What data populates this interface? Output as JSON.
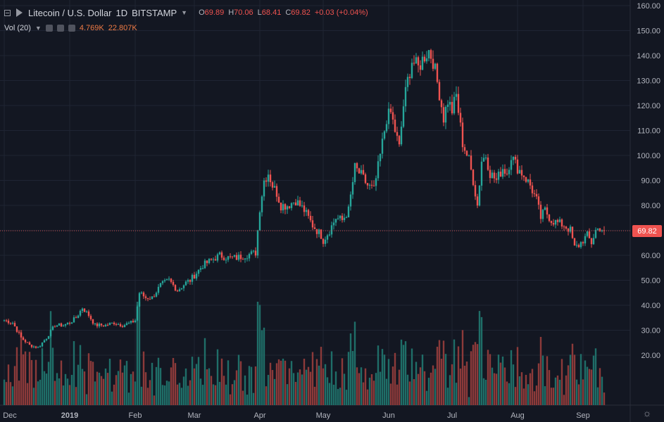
{
  "legend": {
    "title": "Litecoin / U.S. Dollar",
    "interval": "1D",
    "exchange": "BITSTAMP",
    "ohlc": {
      "o_label": "O",
      "o": "69.89",
      "h_label": "H",
      "h": "70.06",
      "l_label": "L",
      "l": "68.41",
      "c_label": "C",
      "c": "69.82",
      "change": "+0.03 (+0.04%)"
    },
    "vol_label": "Vol (20)",
    "vol_value": "4.769K",
    "vol_ma": "22.807K"
  },
  "last_price_label": "69.82",
  "colors": {
    "background": "#131722",
    "grid": "#1f2433",
    "up": "#26a69a",
    "down": "#ef5350",
    "vol_up": "#1f6e68",
    "vol_down": "#8c3a3a",
    "axis_text": "#b2b5be"
  },
  "chart_data": {
    "type": "candlestick",
    "title": "Litecoin / U.S. Dollar",
    "xlabel": "",
    "ylabel": "",
    "ylim": [
      0,
      160
    ],
    "yticks": [
      20,
      30,
      40,
      50,
      60,
      70,
      80,
      90,
      100,
      110,
      120,
      130,
      140,
      150,
      160
    ],
    "ytick_labels": [
      "20.00",
      "30.00",
      "40.00",
      "50.00",
      "60.00",
      "70.00",
      "80.00",
      "90.00",
      "100.00",
      "110.00",
      "120.00",
      "130.00",
      "140.00",
      "150.00",
      "160.00"
    ],
    "xticks": [
      {
        "label": "Dec",
        "day": 0
      },
      {
        "label": "2019",
        "day": 31
      },
      {
        "label": "Feb",
        "day": 62
      },
      {
        "label": "Mar",
        "day": 90
      },
      {
        "label": "Apr",
        "day": 121
      },
      {
        "label": "May",
        "day": 151
      },
      {
        "label": "Jun",
        "day": 182
      },
      {
        "label": "Jul",
        "day": 212
      },
      {
        "label": "Aug",
        "day": 243
      },
      {
        "label": "Sep",
        "day": 274
      }
    ],
    "start_date": "2018-12-01",
    "grid": true,
    "close_anchors": [
      [
        0,
        34
      ],
      [
        4,
        33
      ],
      [
        8,
        27
      ],
      [
        12,
        24
      ],
      [
        16,
        23
      ],
      [
        20,
        27
      ],
      [
        24,
        32
      ],
      [
        28,
        32
      ],
      [
        31,
        33
      ],
      [
        34,
        35
      ],
      [
        37,
        39
      ],
      [
        40,
        36
      ],
      [
        43,
        32
      ],
      [
        48,
        32
      ],
      [
        52,
        33
      ],
      [
        56,
        32
      ],
      [
        60,
        33
      ],
      [
        62,
        34
      ],
      [
        64,
        45
      ],
      [
        67,
        43
      ],
      [
        70,
        43
      ],
      [
        74,
        48
      ],
      [
        78,
        50
      ],
      [
        82,
        46
      ],
      [
        86,
        49
      ],
      [
        88,
        50
      ],
      [
        90,
        52
      ],
      [
        94,
        56
      ],
      [
        98,
        58
      ],
      [
        102,
        60
      ],
      [
        106,
        59
      ],
      [
        110,
        59
      ],
      [
        114,
        60
      ],
      [
        119,
        61
      ],
      [
        121,
        79
      ],
      [
        123,
        90
      ],
      [
        125,
        93
      ],
      [
        127,
        88
      ],
      [
        129,
        85
      ],
      [
        131,
        80
      ],
      [
        134,
        80
      ],
      [
        138,
        82
      ],
      [
        142,
        78
      ],
      [
        146,
        72
      ],
      [
        150,
        68
      ],
      [
        151,
        66
      ],
      [
        154,
        70
      ],
      [
        157,
        75
      ],
      [
        160,
        74
      ],
      [
        163,
        78
      ],
      [
        166,
        95
      ],
      [
        169,
        92
      ],
      [
        172,
        88
      ],
      [
        175,
        86
      ],
      [
        178,
        100
      ],
      [
        181,
        115
      ],
      [
        183,
        117
      ],
      [
        185,
        110
      ],
      [
        187,
        103
      ],
      [
        189,
        120
      ],
      [
        191,
        130
      ],
      [
        193,
        138
      ],
      [
        196,
        135
      ],
      [
        199,
        140
      ],
      [
        201,
        142
      ],
      [
        203,
        138
      ],
      [
        206,
        125
      ],
      [
        208,
        115
      ],
      [
        210,
        122
      ],
      [
        212,
        118
      ],
      [
        214,
        124
      ],
      [
        217,
        105
      ],
      [
        220,
        98
      ],
      [
        222,
        90
      ],
      [
        224,
        80
      ],
      [
        226,
        98
      ],
      [
        228,
        100
      ],
      [
        230,
        93
      ],
      [
        233,
        90
      ],
      [
        236,
        95
      ],
      [
        238,
        93
      ],
      [
        240,
        100
      ],
      [
        243,
        95
      ],
      [
        246,
        92
      ],
      [
        249,
        88
      ],
      [
        252,
        82
      ],
      [
        254,
        75
      ],
      [
        256,
        78
      ],
      [
        259,
        74
      ],
      [
        262,
        73
      ],
      [
        265,
        72
      ],
      [
        268,
        70
      ],
      [
        270,
        63
      ],
      [
        272,
        64
      ],
      [
        274,
        66
      ],
      [
        276,
        68
      ],
      [
        278,
        65
      ],
      [
        280,
        70
      ],
      [
        282,
        71
      ],
      [
        284,
        69.82
      ]
    ],
    "volume_ylim": [
      0,
      40000
    ],
    "volume_note": "Vol (20) with moving average 22.807K; last bar 4.769K",
    "last_close": 69.82
  }
}
